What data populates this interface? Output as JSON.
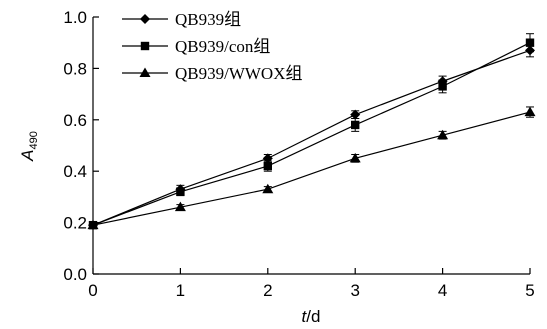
{
  "chart_data": {
    "type": "line",
    "title": "",
    "xlabel": {
      "main": "t",
      "unit": "/d"
    },
    "ylabel": {
      "main": "A",
      "sub": "490"
    },
    "x": [
      0,
      1,
      2,
      3,
      4,
      5
    ],
    "xlim": [
      0,
      5
    ],
    "ylim": [
      0.0,
      1.0
    ],
    "xticks": [
      "0",
      "1",
      "2",
      "3",
      "4",
      "5"
    ],
    "yticks": [
      "0.0",
      "0.2",
      "0.4",
      "0.6",
      "0.8",
      "1.0"
    ],
    "grid": false,
    "legend_position": "top-left",
    "series": [
      {
        "name": "QB939组",
        "marker": "diamond",
        "values": [
          0.19,
          0.33,
          0.45,
          0.62,
          0.75,
          0.87
        ],
        "errors": [
          0.01,
          0.015,
          0.015,
          0.015,
          0.02,
          0.025
        ]
      },
      {
        "name": "QB939/con组",
        "marker": "square",
        "values": [
          0.19,
          0.32,
          0.42,
          0.58,
          0.73,
          0.9
        ],
        "errors": [
          0.01,
          0.015,
          0.02,
          0.025,
          0.025,
          0.035
        ]
      },
      {
        "name": "QB939/WWOX组",
        "marker": "triangle",
        "values": [
          0.19,
          0.26,
          0.33,
          0.45,
          0.54,
          0.63
        ],
        "errors": [
          0.01,
          0.01,
          0.01,
          0.015,
          0.015,
          0.02
        ]
      }
    ],
    "colors": {
      "line": "#000000",
      "background": "#ffffff"
    }
  }
}
